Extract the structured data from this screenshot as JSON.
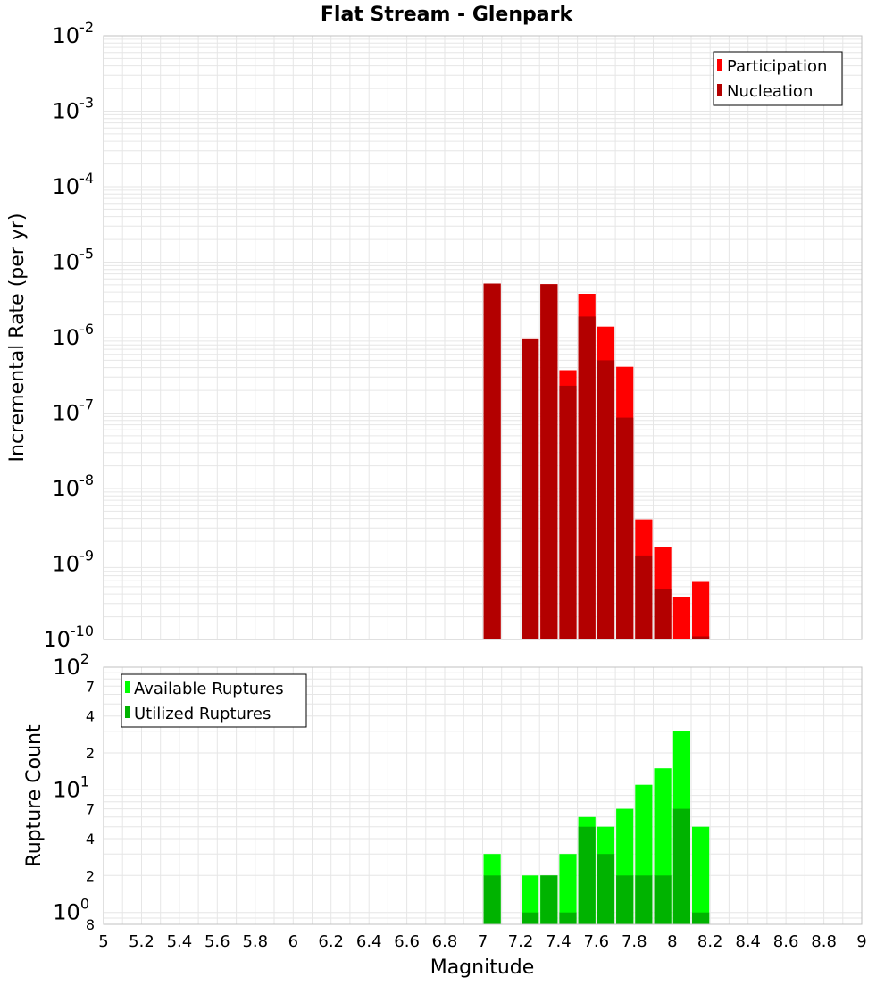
{
  "title": "Flat Stream - Glenpark",
  "colors": {
    "participation": "#ff0000",
    "nucleation": "#b30000",
    "available": "#00ff00",
    "utilized": "#00b300",
    "grid": "#e6e6e6",
    "frame": "#c0c0c0"
  },
  "chart_data": [
    {
      "type": "bar",
      "ylabel": "Incremental Rate (per yr)",
      "yscale": "log",
      "ylim": [
        1e-10,
        0.01
      ],
      "xlim": [
        5,
        9
      ],
      "y_ticks": [
        {
          "base": "10",
          "exp": "-10",
          "value": 1e-10
        },
        {
          "base": "10",
          "exp": "-9",
          "value": 1e-09
        },
        {
          "base": "10",
          "exp": "-8",
          "value": 1e-08
        },
        {
          "base": "10",
          "exp": "-7",
          "value": 1e-07
        },
        {
          "base": "10",
          "exp": "-6",
          "value": 1e-06
        },
        {
          "base": "10",
          "exp": "-5",
          "value": 1e-05
        },
        {
          "base": "10",
          "exp": "-4",
          "value": 0.0001
        },
        {
          "base": "10",
          "exp": "-3",
          "value": 0.001
        },
        {
          "base": "10",
          "exp": "-2",
          "value": 0.01
        }
      ],
      "legend": {
        "position": "top-right",
        "items": [
          "Participation",
          "Nucleation"
        ]
      },
      "x": [
        7.05,
        7.25,
        7.35,
        7.45,
        7.55,
        7.65,
        7.75,
        7.85,
        7.95,
        8.05,
        8.15
      ],
      "series": [
        {
          "name": "Participation",
          "values": [
            5.2e-06,
            9.5e-07,
            5.1e-06,
            3.7e-07,
            3.8e-06,
            1.4e-06,
            4.1e-07,
            3.9e-09,
            1.7e-09,
            3.6e-10,
            5.8e-10
          ]
        },
        {
          "name": "Nucleation",
          "values": [
            5.2e-06,
            9.5e-07,
            5.1e-06,
            2.3e-07,
            1.9e-06,
            5e-07,
            8.7e-08,
            1.3e-09,
            4.6e-10,
            null,
            1.1e-10
          ]
        }
      ]
    },
    {
      "type": "bar",
      "ylabel": "Rupture Count",
      "yscale": "log",
      "ylim": [
        0.8,
        100
      ],
      "xlim": [
        5,
        9
      ],
      "xlabel": "Magnitude",
      "x_ticks": [
        "5",
        "5.2",
        "5.4",
        "5.6",
        "5.8",
        "6",
        "6.2",
        "6.4",
        "6.6",
        "6.8",
        "7",
        "7.2",
        "7.4",
        "7.6",
        "7.8",
        "8",
        "8.2",
        "8.4",
        "8.6",
        "8.8",
        "9"
      ],
      "y_major_ticks": [
        {
          "base": "10",
          "exp": "0",
          "value": 1
        },
        {
          "base": "10",
          "exp": "1",
          "value": 10
        },
        {
          "base": "10",
          "exp": "2",
          "value": 100
        }
      ],
      "y_minor_ticks": [
        {
          "label": "8",
          "value": 0.8
        },
        {
          "label": "2",
          "value": 2
        },
        {
          "label": "4",
          "value": 4
        },
        {
          "label": "7",
          "value": 7
        },
        {
          "label": "2",
          "value": 20
        },
        {
          "label": "4",
          "value": 40
        },
        {
          "label": "7",
          "value": 70
        }
      ],
      "legend": {
        "position": "top-left",
        "items": [
          "Available Ruptures",
          "Utilized Ruptures"
        ]
      },
      "x": [
        7.05,
        7.25,
        7.35,
        7.45,
        7.55,
        7.65,
        7.75,
        7.85,
        7.95,
        8.05,
        8.15
      ],
      "series": [
        {
          "name": "Available Ruptures",
          "values": [
            3,
            2,
            2,
            3,
            6,
            5,
            7,
            11,
            15,
            30,
            5
          ]
        },
        {
          "name": "Utilized Ruptures",
          "values": [
            2,
            1,
            2,
            1,
            5,
            3,
            2,
            2,
            2,
            7,
            1
          ]
        }
      ]
    }
  ]
}
